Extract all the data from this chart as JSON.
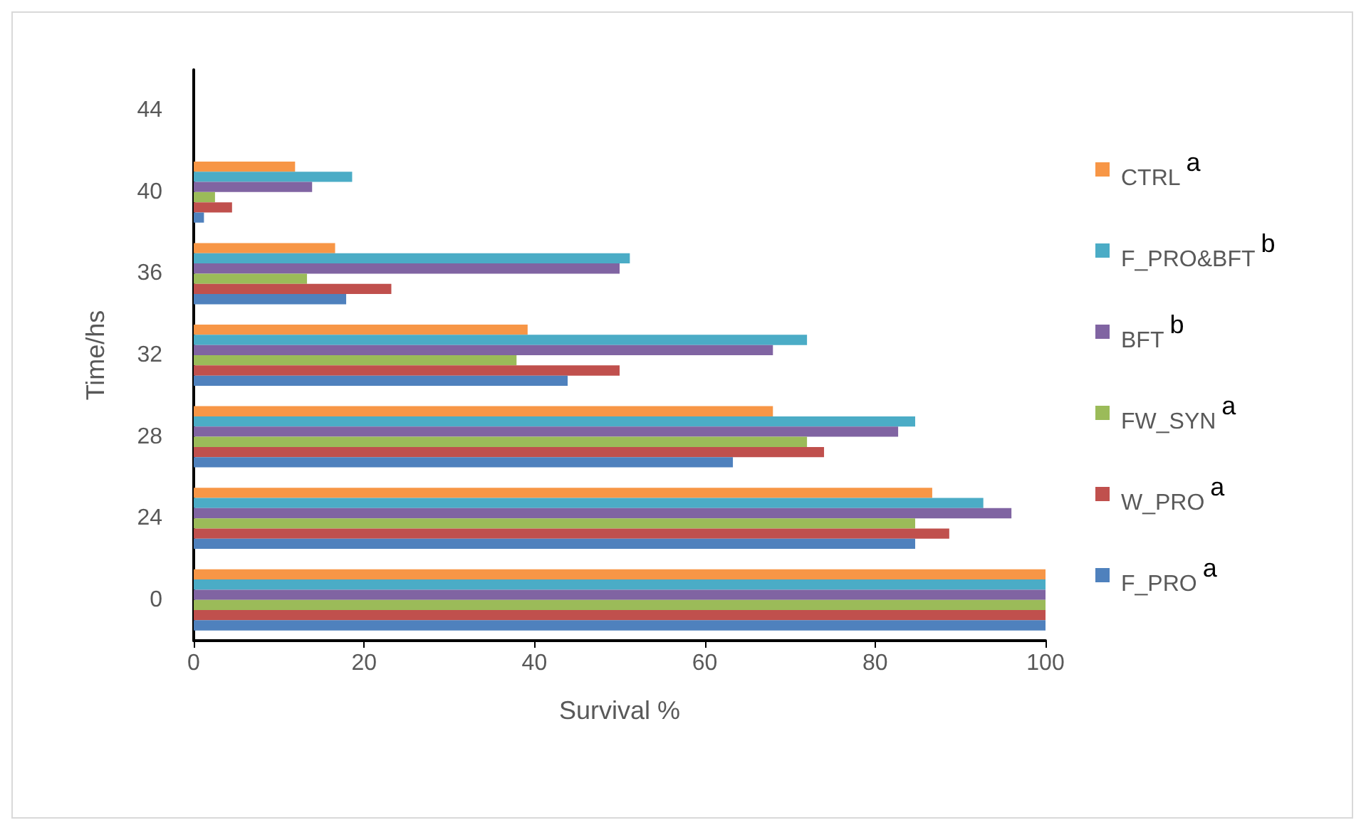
{
  "chart_data": {
    "type": "bar",
    "orientation": "horizontal",
    "xlabel": "Survival %",
    "ylabel": "Time/hs",
    "categories": [
      "44",
      "40",
      "36",
      "32",
      "28",
      "24",
      "0"
    ],
    "xlim": [
      0,
      100
    ],
    "xticks": [
      0,
      20,
      40,
      60,
      80,
      100
    ],
    "grid": false,
    "legend": "right",
    "series": [
      {
        "name": "CTRL$^{a}$",
        "color": "#f79646",
        "values": [
          null,
          11.9,
          16.6,
          39.2,
          68,
          86.7,
          100
        ]
      },
      {
        "name": "F_PRO&BFT$^{b}$",
        "color": "#4bacc6",
        "values": [
          null,
          18.6,
          51.2,
          72,
          84.7,
          92.7,
          100
        ]
      },
      {
        "name": "BFT$^{b}$",
        "color": "#8064a2",
        "values": [
          null,
          13.9,
          50,
          68,
          82.7,
          96,
          100
        ]
      },
      {
        "name": "FW_SYN$^{a}$",
        "color": "#9bbb59",
        "values": [
          null,
          2.5,
          13.3,
          37.9,
          72,
          84.7,
          100
        ]
      },
      {
        "name": "W_PRO$^{a}$",
        "color": "#c0504d",
        "values": [
          null,
          4.5,
          23.2,
          50,
          74,
          88.7,
          100
        ]
      },
      {
        "name": "F_PRO$^{a}$",
        "color": "#4f81bd",
        "values": [
          null,
          1.2,
          17.9,
          43.9,
          63.3,
          84.7,
          100
        ]
      }
    ]
  }
}
